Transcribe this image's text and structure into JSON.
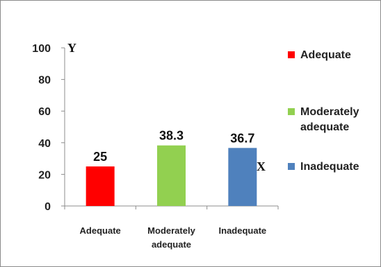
{
  "chart_data": {
    "type": "bar",
    "categories": [
      "Adequate",
      "Moderately adequate",
      "Inadequate"
    ],
    "category_lines": [
      [
        "Adequate"
      ],
      [
        "Moderately",
        "adequate"
      ],
      [
        "Inadequate"
      ]
    ],
    "values": [
      25,
      38.3,
      36.7
    ],
    "data_labels": [
      "25",
      "38.3",
      "36.7"
    ],
    "colors": [
      "#ff0000",
      "#92d050",
      "#4f81bd"
    ],
    "y_ticks": [
      0,
      20,
      40,
      60,
      80,
      100
    ],
    "ylim": [
      0,
      100
    ],
    "y_axis_label": "Y",
    "x_axis_label": "X",
    "grid": false,
    "legend_position": "right",
    "legend": [
      {
        "lines": [
          "Adequate"
        ],
        "color": "#ff0000"
      },
      {
        "lines": [
          "Moderately",
          "adequate"
        ],
        "color": "#92d050"
      },
      {
        "lines": [
          "Inadequate"
        ],
        "color": "#4f81bd"
      }
    ]
  }
}
